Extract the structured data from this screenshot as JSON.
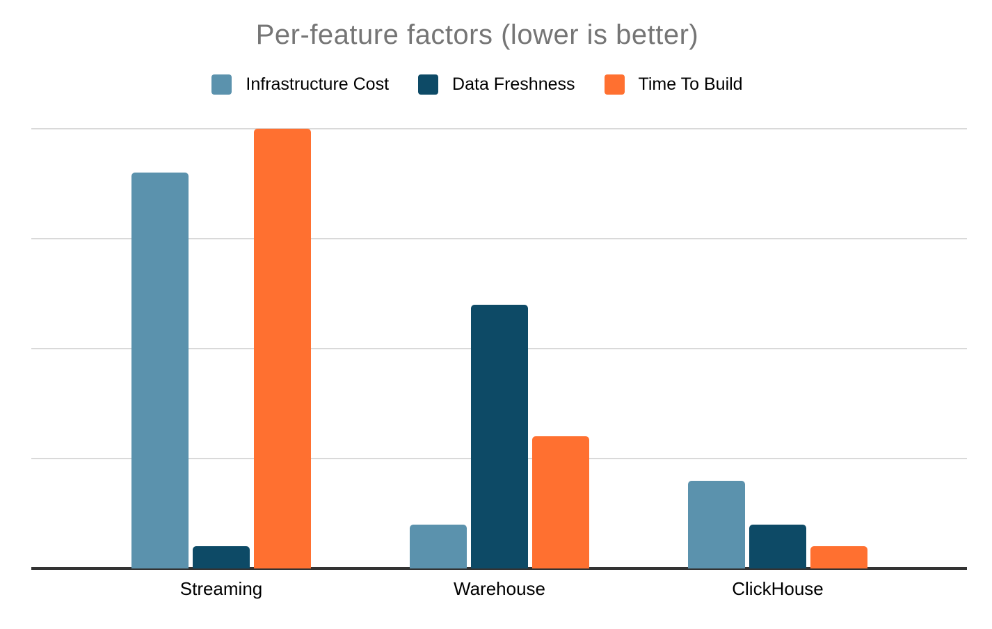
{
  "title": "Per-feature factors (lower is better)",
  "legend": {
    "items": [
      {
        "label": "Infrastructure Cost",
        "color": "#5B92AD"
      },
      {
        "label": "Data Freshness",
        "color": "#0D4A66"
      },
      {
        "label": "Time To Build",
        "color": "#FF7030"
      }
    ]
  },
  "chart_data": {
    "type": "bar",
    "title": "Per-feature factors (lower is better)",
    "categories": [
      "Streaming",
      "Warehouse",
      "ClickHouse"
    ],
    "series": [
      {
        "name": "Infrastructure Cost",
        "color": "#5B92AD",
        "values": [
          9,
          1,
          2
        ]
      },
      {
        "name": "Data Freshness",
        "color": "#0D4A66",
        "values": [
          0.5,
          6,
          1
        ]
      },
      {
        "name": "Time To Build",
        "color": "#FF7030",
        "values": [
          10,
          3,
          0.5
        ]
      }
    ],
    "xlabel": "",
    "ylabel": "",
    "ylim": [
      0,
      10
    ],
    "gridline_interval": 2.5,
    "grid": true,
    "y_axis_labels_visible": false,
    "legend_position": "top",
    "colors": {
      "title_text": "#757575",
      "label_text": "#000000",
      "gridline": "#d9d9d9",
      "axis_line": "#333333",
      "background": "#ffffff"
    }
  }
}
